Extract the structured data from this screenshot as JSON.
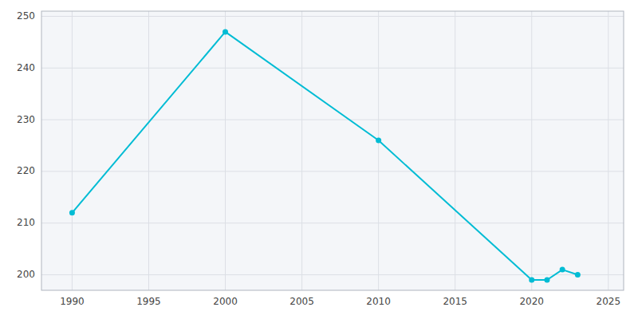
{
  "chart_data": {
    "type": "line",
    "x": [
      1990,
      2000,
      2010,
      2020,
      2021,
      2022,
      2023
    ],
    "values": [
      212,
      247,
      226,
      199,
      199,
      201,
      200
    ],
    "color": "#00bcd4",
    "marker": "circle",
    "xlim": [
      1988,
      2026
    ],
    "ylim": [
      197,
      251
    ],
    "xticks": [
      1990,
      1995,
      2000,
      2005,
      2010,
      2015,
      2020,
      2025
    ],
    "yticks": [
      200,
      210,
      220,
      230,
      240,
      250
    ],
    "grid": true
  }
}
